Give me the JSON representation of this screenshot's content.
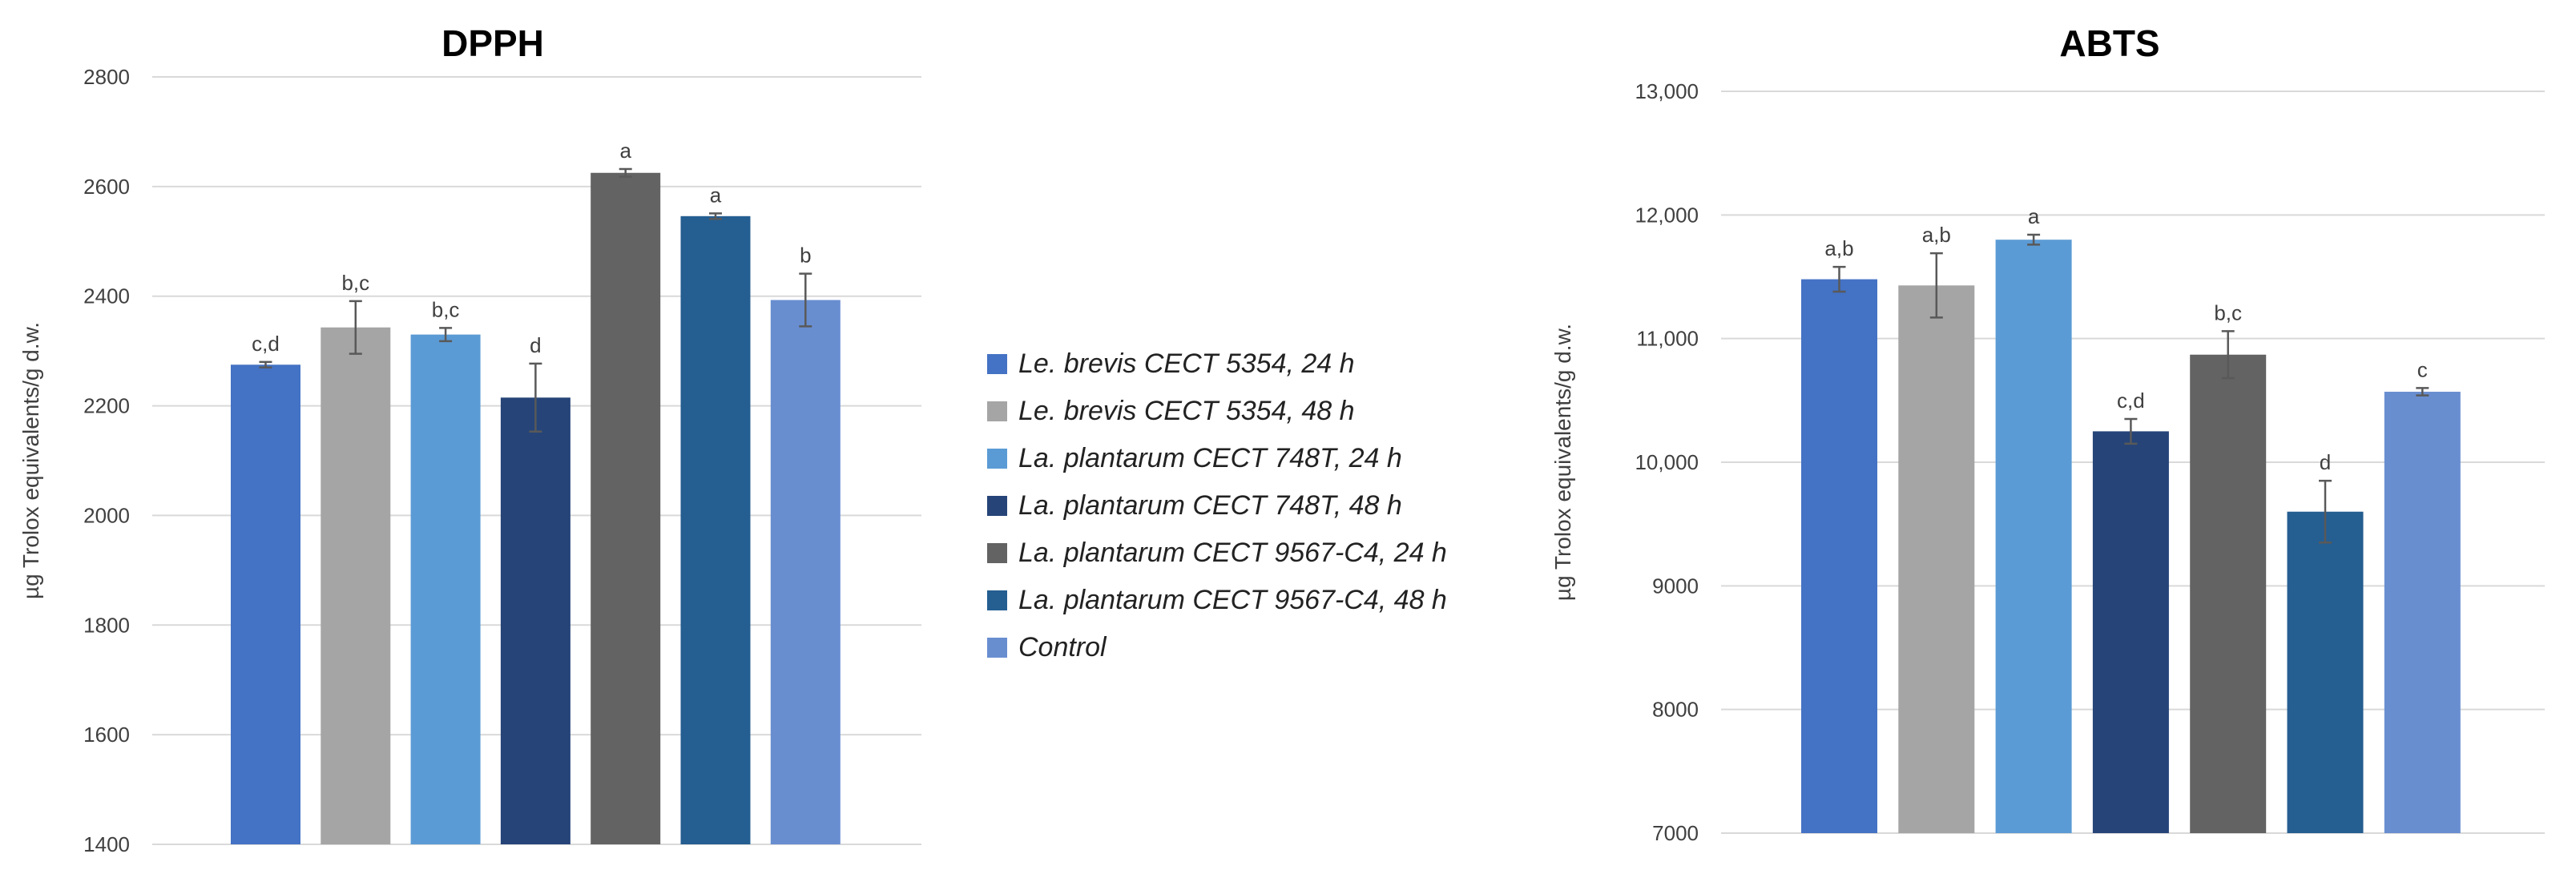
{
  "chart_data": [
    {
      "type": "bar",
      "title": "DPPH",
      "xlabel": "",
      "ylabel": "µg Trolox equivalents/g d.w.",
      "ylim": [
        1400,
        2800
      ],
      "yticks": [
        "1400",
        "1600",
        "1800",
        "2000",
        "2200",
        "2400",
        "2600",
        "2800"
      ],
      "grid": true,
      "categories": [
        "Le. brevis CECT 5354, 24 h",
        "Le. brevis CECT 5354, 48 h",
        "La. plantarum CECT 748T, 24 h",
        "La. plantarum CECT 748T, 48 h",
        "La. plantarum CECT 9567-C4, 24 h",
        "La. plantarum CECT 9567-C4, 48 h",
        "Control"
      ],
      "values": [
        2275,
        2343,
        2330,
        2215,
        2625,
        2546,
        2393
      ],
      "errors": [
        5,
        48,
        12,
        62,
        7,
        5,
        48
      ],
      "annotations": [
        "c,d",
        "b,c",
        "b,c",
        "d",
        "a",
        "a",
        "b"
      ]
    },
    {
      "type": "bar",
      "title": "ABTS",
      "xlabel": "",
      "ylabel": "µg Trolox equivalents/g d.w.",
      "ylim": [
        7000,
        13000
      ],
      "yticks": [
        "7000",
        "8000",
        "9000",
        "10,000",
        "11,000",
        "12,000",
        "13,000"
      ],
      "grid": true,
      "categories": [
        "Le. brevis CECT 5354, 24 h",
        "Le. brevis CECT 5354, 48 h",
        "La. plantarum CECT 748T, 24 h",
        "La. plantarum CECT 748T, 48 h",
        "La. plantarum CECT 9567-C4, 24 h",
        "La. plantarum CECT 9567-C4, 48 h",
        "Control"
      ],
      "values": [
        11480,
        11430,
        11800,
        10250,
        10870,
        9600,
        10570
      ],
      "errors": [
        100,
        260,
        40,
        100,
        190,
        250,
        30
      ],
      "annotations": [
        "a,b",
        "a,b",
        "a",
        "c,d",
        "b,c",
        "d",
        "c"
      ]
    }
  ],
  "legend": {
    "placement": "between charts",
    "items": [
      {
        "label": "Le. brevis CECT 5354, 24 h",
        "color": "#4472c4"
      },
      {
        "label": "Le. brevis CECT 5354, 48 h",
        "color": "#a5a5a5"
      },
      {
        "label": "La. plantarum CECT 748T, 24 h",
        "color": "#5b9bd5"
      },
      {
        "label": "La. plantarum CECT 748T, 48 h",
        "color": "#264478"
      },
      {
        "label": "La. plantarum CECT 9567-C4, 24 h",
        "color": "#636363"
      },
      {
        "label": "La. plantarum CECT 9567-C4, 48 h",
        "color": "#255e91"
      },
      {
        "label": "Control",
        "color": "#698ed0"
      }
    ]
  }
}
